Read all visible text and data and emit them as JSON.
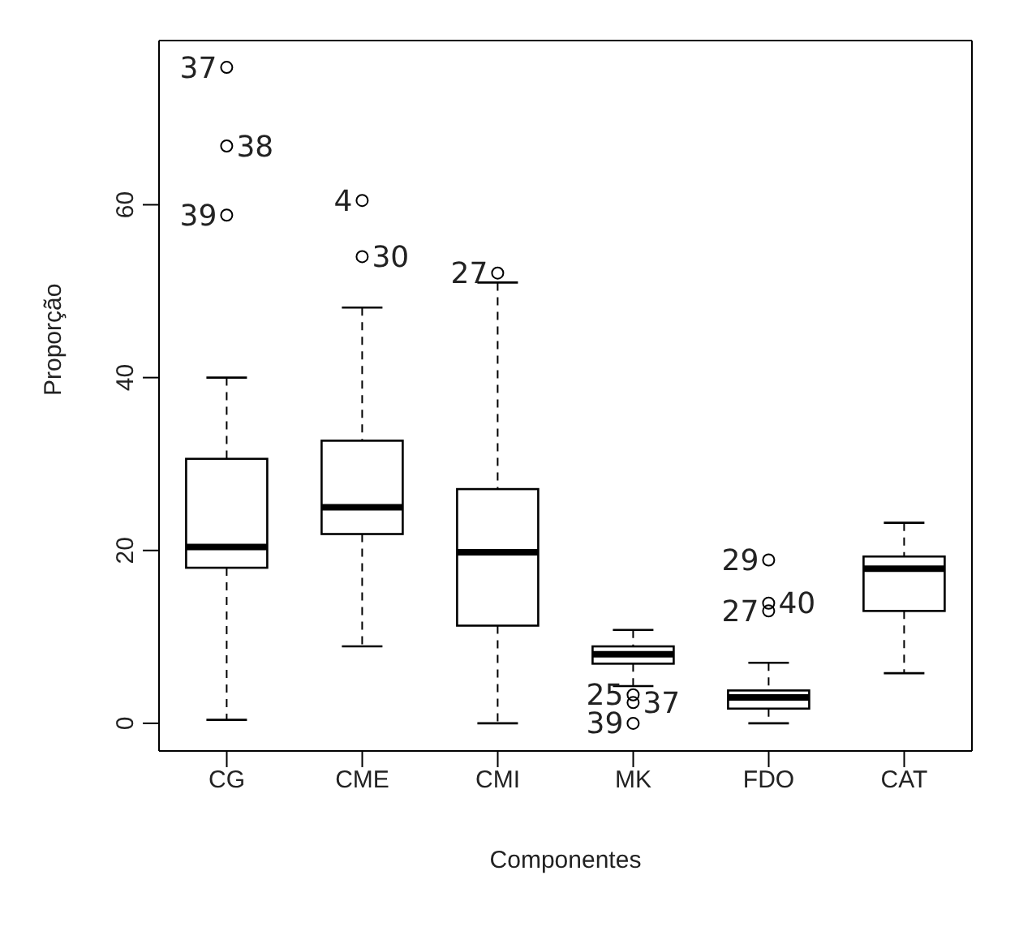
{
  "chart_data": {
    "type": "box",
    "xlabel": "Componentes",
    "ylabel": "Proporção",
    "categories": [
      "CG",
      "CME",
      "CMI",
      "MK",
      "FDO",
      "CAT"
    ],
    "boxes": [
      {
        "low": 0.4,
        "q1": 18.0,
        "median": 20.4,
        "q3": 30.6,
        "high": 40.0,
        "outliers": [
          75.9,
          66.8,
          58.8
        ]
      },
      {
        "low": 8.9,
        "q1": 21.9,
        "median": 25.0,
        "q3": 32.7,
        "high": 48.1,
        "outliers": [
          60.5,
          54.0
        ]
      },
      {
        "low": 0,
        "q1": 11.3,
        "median": 19.8,
        "q3": 27.1,
        "high": 51.0,
        "outliers": [
          52.1
        ]
      },
      {
        "low": 4.3,
        "q1": 6.9,
        "median": 8.0,
        "q3": 8.9,
        "high": 10.8,
        "outliers": [
          3.3,
          2.4,
          0
        ]
      },
      {
        "low": 0,
        "q1": 1.7,
        "median": 3.0,
        "q3": 3.8,
        "high": 7.0,
        "outliers": [
          18.9,
          13.9,
          13.0
        ]
      },
      {
        "low": 5.8,
        "q1": 13.0,
        "median": 17.9,
        "q3": 19.3,
        "high": 23.2
      }
    ],
    "ylim": [
      -3.2,
      79
    ],
    "yticks": [
      0,
      20,
      40,
      60
    ],
    "annotations": [
      "37",
      "38",
      "39",
      "4",
      "30",
      "27",
      "25",
      "37",
      "39",
      "29",
      "40",
      "27"
    ]
  }
}
